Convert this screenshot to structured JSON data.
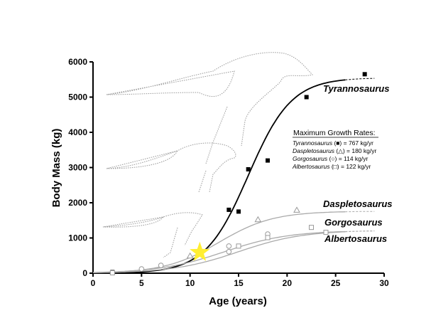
{
  "chart_data": {
    "type": "scatter",
    "xlabel": "Age (years)",
    "ylabel": "Body Mass (kg)",
    "xlim": [
      0,
      30
    ],
    "ylim": [
      0,
      6000
    ],
    "xticks": [
      "0",
      "5",
      "10",
      "15",
      "20",
      "25",
      "30"
    ],
    "yticks": [
      "0",
      "1000",
      "2000",
      "3000",
      "4000",
      "5000",
      "6000"
    ],
    "legend": {
      "title": "Maximum Growth Rates:",
      "entries": [
        {
          "species": "Tyrannosaurus",
          "symbol": "■",
          "rate": "= 767 kg/yr"
        },
        {
          "species": "Daspletosaurus",
          "symbol": "△",
          "rate": "= 180 kg/yr"
        },
        {
          "species": "Gorgosaurus",
          "symbol": "○",
          "rate": "= 114 kg/yr"
        },
        {
          "species": "Albertosaurus",
          "symbol": "□",
          "rate": "= 122 kg/yr"
        }
      ]
    },
    "series": [
      {
        "name": "Tyrannosaurus",
        "marker": "filled-square",
        "color": "#000000",
        "curve": {
          "asymptote": 5550,
          "midpoint": 16,
          "k": 0.45
        },
        "points": [
          [
            2,
            30
          ],
          [
            14,
            1800
          ],
          [
            15,
            1750
          ],
          [
            16,
            2950
          ],
          [
            18,
            3200
          ],
          [
            22,
            5000
          ],
          [
            28,
            5650
          ]
        ]
      },
      {
        "name": "Daspletosaurus",
        "marker": "triangle",
        "color": "#aaaaaa",
        "curve": {
          "asymptote": 1760,
          "midpoint": 13,
          "k": 0.36
        },
        "points": [
          [
            10,
            490
          ],
          [
            17,
            1520
          ],
          [
            21,
            1790
          ]
        ]
      },
      {
        "name": "Gorgosaurus",
        "marker": "circle",
        "color": "#aaaaaa",
        "curve": {
          "asymptote": 1210,
          "midpoint": 13.5,
          "k": 0.3
        },
        "points": [
          [
            5,
            120
          ],
          [
            7,
            220
          ],
          [
            14,
            770
          ],
          [
            14,
            610
          ],
          [
            18,
            1110
          ]
        ]
      },
      {
        "name": "Albertosaurus",
        "marker": "open-square",
        "color": "#aaaaaa",
        "curve": {
          "asymptote": 1220,
          "midpoint": 15,
          "k": 0.3
        },
        "points": [
          [
            2,
            10
          ],
          [
            15,
            770
          ],
          [
            18,
            1010
          ],
          [
            22.5,
            1300
          ],
          [
            24,
            1160
          ]
        ]
      }
    ],
    "highlight": {
      "marker": "star",
      "color": "#ffee33",
      "point": [
        11,
        590
      ]
    }
  }
}
